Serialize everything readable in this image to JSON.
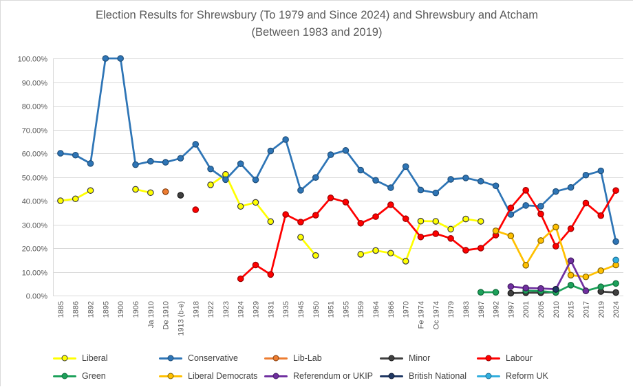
{
  "title": "Election Results for Shrewsbury (To 1979 and Since 2024) and Shrewsbury and Atcham (Between 1983 and 2019)",
  "chart_data": {
    "type": "line",
    "title": "Election Results for Shrewsbury (To 1979 and Since 2024) and Shrewsbury and Atcham (Between 1983 and 2019)",
    "grid": true,
    "legend_position": "bottom",
    "y_axis": {
      "min": 0,
      "max": 100,
      "step": 10,
      "tick_labels_top_down": [
        "100.00%",
        "90.00%",
        "80.00%",
        "70.00%",
        "60.00%",
        "50.00%",
        "40.00%",
        "30.00%",
        "20.00%",
        "10.00%",
        "0.00%"
      ]
    },
    "x_axis": {
      "label_rotation_deg": -90
    },
    "categories": [
      "1885",
      "1886",
      "1892",
      "1895",
      "1900",
      "1906",
      "Ja 1910",
      "De 1910",
      "1913 (b-e)",
      "1918",
      "1922",
      "1923",
      "1924",
      "1929",
      "1931",
      "1935",
      "1945",
      "1950",
      "1951",
      "1955",
      "1959",
      "1964",
      "1966",
      "1970",
      "Fe 1974",
      "Oc 1974",
      "1979",
      "1983",
      "1987",
      "1992",
      "1997",
      "2001",
      "2005",
      "2010",
      "2015",
      "2017",
      "2019",
      "2024"
    ],
    "series": [
      {
        "name": "Liberal",
        "color": "#FFFF00",
        "outline": "#3B3B3B",
        "values": [
          40.0,
          40.8,
          44.3,
          null,
          null,
          44.8,
          43.4,
          null,
          null,
          null,
          46.7,
          51.1,
          37.6,
          39.3,
          31.2,
          null,
          24.6,
          16.9,
          null,
          null,
          17.4,
          19.0,
          17.9,
          14.5,
          31.4,
          31.3,
          28.0,
          32.3,
          31.3,
          null,
          null,
          null,
          null,
          null,
          null,
          null,
          null,
          null
        ]
      },
      {
        "name": "Conservative",
        "color": "#2E75B6",
        "outline": "#1F4E79",
        "values": [
          60.0,
          59.2,
          55.7,
          100.0,
          100.0,
          55.2,
          56.6,
          56.2,
          57.9,
          63.8,
          53.4,
          48.9,
          55.6,
          48.8,
          61.0,
          65.8,
          44.4,
          49.8,
          59.4,
          61.2,
          52.9,
          48.6,
          45.5,
          54.4,
          44.5,
          43.3,
          49.0,
          49.6,
          48.2,
          46.3,
          34.2,
          38.0,
          37.7,
          43.9,
          45.6,
          50.8,
          52.6,
          22.8
        ]
      },
      {
        "name": "Lib-Lab",
        "color": "#ED7D31",
        "outline": "#843C0C",
        "values": [
          null,
          null,
          null,
          null,
          null,
          null,
          null,
          43.8,
          null,
          null,
          null,
          null,
          null,
          null,
          null,
          null,
          null,
          null,
          null,
          null,
          null,
          null,
          null,
          null,
          null,
          null,
          null,
          null,
          null,
          null,
          null,
          null,
          null,
          null,
          null,
          null,
          null,
          null
        ]
      },
      {
        "name": "Minor",
        "color": "#404040",
        "outline": "#1A1A1A",
        "values": [
          null,
          null,
          null,
          null,
          null,
          null,
          null,
          null,
          42.3,
          null,
          null,
          null,
          null,
          null,
          null,
          null,
          null,
          null,
          null,
          null,
          null,
          null,
          null,
          null,
          null,
          null,
          null,
          null,
          null,
          null,
          1.0,
          1.2,
          1.2,
          1.4,
          null,
          null,
          1.7,
          1.3
        ]
      },
      {
        "name": "Labour",
        "color": "#FF0000",
        "outline": "#990000",
        "values": [
          null,
          null,
          null,
          null,
          null,
          null,
          null,
          null,
          null,
          36.2,
          null,
          null,
          7.1,
          12.9,
          8.9,
          34.2,
          31.0,
          33.9,
          41.2,
          39.4,
          30.5,
          33.3,
          38.3,
          32.4,
          24.7,
          26.1,
          24.1,
          19.1,
          20.0,
          25.5,
          37.0,
          44.4,
          34.4,
          20.8,
          28.2,
          39.0,
          33.7,
          44.3
        ]
      },
      {
        "name": "Green",
        "color": "#1CA15A",
        "outline": "#0E6B39",
        "values": [
          null,
          null,
          null,
          null,
          null,
          null,
          null,
          null,
          null,
          null,
          null,
          null,
          null,
          null,
          null,
          null,
          null,
          null,
          null,
          null,
          null,
          null,
          null,
          null,
          null,
          null,
          null,
          null,
          1.4,
          1.4,
          null,
          2.1,
          1.9,
          1.3,
          4.4,
          2.0,
          3.7,
          5.1
        ]
      },
      {
        "name": "Liberal Democrats",
        "color": "#FFC000",
        "outline": "#7F6000",
        "values": [
          null,
          null,
          null,
          null,
          null,
          null,
          null,
          null,
          null,
          null,
          null,
          null,
          null,
          null,
          null,
          null,
          null,
          null,
          null,
          null,
          null,
          null,
          null,
          null,
          null,
          null,
          null,
          null,
          null,
          27.3,
          25.2,
          12.8,
          23.2,
          28.9,
          8.6,
          7.9,
          10.5,
          12.9
        ]
      },
      {
        "name": "Referendum or UKIP",
        "color": "#7030A0",
        "outline": "#401A5E",
        "values": [
          null,
          null,
          null,
          null,
          null,
          null,
          null,
          null,
          null,
          null,
          null,
          null,
          null,
          null,
          null,
          null,
          null,
          null,
          null,
          null,
          null,
          null,
          null,
          null,
          null,
          null,
          null,
          null,
          null,
          null,
          3.8,
          3.2,
          3.0,
          2.7,
          14.7,
          2.0,
          null,
          null
        ]
      },
      {
        "name": "British National",
        "color": "#203864",
        "outline": "#0F1B33",
        "values": [
          null,
          null,
          null,
          null,
          null,
          null,
          null,
          null,
          null,
          null,
          null,
          null,
          null,
          null,
          null,
          null,
          null,
          null,
          null,
          null,
          null,
          null,
          null,
          null,
          null,
          null,
          null,
          null,
          null,
          null,
          null,
          null,
          null,
          2.6,
          null,
          null,
          null,
          null
        ]
      },
      {
        "name": "Reform UK",
        "color": "#31AEDE",
        "outline": "#1B6E94",
        "values": [
          null,
          null,
          null,
          null,
          null,
          null,
          null,
          null,
          null,
          null,
          null,
          null,
          null,
          null,
          null,
          null,
          null,
          null,
          null,
          null,
          null,
          null,
          null,
          null,
          null,
          null,
          null,
          null,
          null,
          null,
          null,
          null,
          null,
          null,
          null,
          null,
          null,
          15.0
        ]
      }
    ],
    "legend_rows": [
      [
        "Liberal",
        "Conservative",
        "Lib-Lab",
        "Minor",
        "Labour"
      ],
      [
        "Green",
        "Liberal Democrats",
        "Referendum or UKIP",
        "British National",
        "Reform UK"
      ]
    ]
  }
}
